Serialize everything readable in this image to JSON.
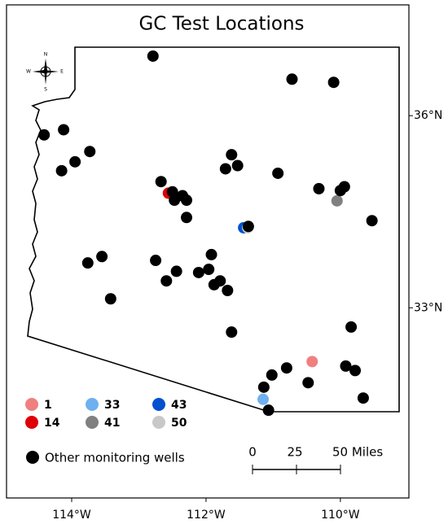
{
  "chart_data": {
    "type": "scatter",
    "title": "GC Test Locations",
    "xlim": [
      -114.97,
      -108.98
    ],
    "ylim": [
      30.03,
      37.73
    ],
    "xticks": [
      {
        "value": -114,
        "label": "114°W"
      },
      {
        "value": -112,
        "label": "112°W"
      },
      {
        "value": -110,
        "label": "110°W"
      }
    ],
    "yticks": [
      {
        "value": 36,
        "label": "36°N"
      },
      {
        "value": 33,
        "label": "33°N"
      }
    ],
    "compass": [
      "N",
      "S",
      "E",
      "W"
    ],
    "scale_bar": [
      "0",
      "25",
      "50 Miles"
    ],
    "series": [
      {
        "name": "1",
        "color": "#f08080",
        "x": [
          -110.42
        ],
        "y": [
          32.16
        ]
      },
      {
        "name": "14",
        "color": "#e00000",
        "x": [
          -112.56
        ],
        "y": [
          34.79
        ]
      },
      {
        "name": "33",
        "color": "#6fb0f0",
        "x": [
          -111.15
        ],
        "y": [
          31.57
        ]
      },
      {
        "name": "41",
        "color": "#808080",
        "x": [
          -110.05
        ],
        "y": [
          34.67
        ]
      },
      {
        "name": "43",
        "color": "#0050d0",
        "x": [
          -111.44
        ],
        "y": [
          34.25
        ]
      },
      {
        "name": "50",
        "color": "#c8c8c8",
        "x": [
          -111.38
        ],
        "y": [
          34.25
        ]
      },
      {
        "name": "Other monitoring wells",
        "color": "#000000",
        "x": [
          -112.79,
          -110.72,
          -110.1,
          -114.41,
          -114.12,
          -113.73,
          -113.95,
          -114.15,
          -111.62,
          -111.71,
          -111.53,
          -110.93,
          -112.67,
          -112.5,
          -112.35,
          -112.47,
          -112.29,
          -112.29,
          -110.32,
          -109.94,
          -110.0,
          -109.53,
          -111.37,
          -113.76,
          -113.55,
          -112.75,
          -112.59,
          -112.44,
          -112.11,
          -111.96,
          -111.92,
          -111.88,
          -111.79,
          -111.68,
          -113.42,
          -111.62,
          -109.84,
          -110.8,
          -111.02,
          -111.14,
          -110.48,
          -109.92,
          -109.78,
          -109.66,
          -111.07
        ],
        "y": [
          36.93,
          36.57,
          36.52,
          35.7,
          35.78,
          35.44,
          35.28,
          35.14,
          35.39,
          35.17,
          35.22,
          35.1,
          34.97,
          34.81,
          34.75,
          34.68,
          34.68,
          34.41,
          34.86,
          34.89,
          34.83,
          34.36,
          34.27,
          33.7,
          33.8,
          33.74,
          33.42,
          33.57,
          33.55,
          33.6,
          33.83,
          33.36,
          33.42,
          33.27,
          33.14,
          32.62,
          32.7,
          32.06,
          31.95,
          31.76,
          31.83,
          32.09,
          32.02,
          31.59,
          31.4
        ]
      }
    ]
  }
}
